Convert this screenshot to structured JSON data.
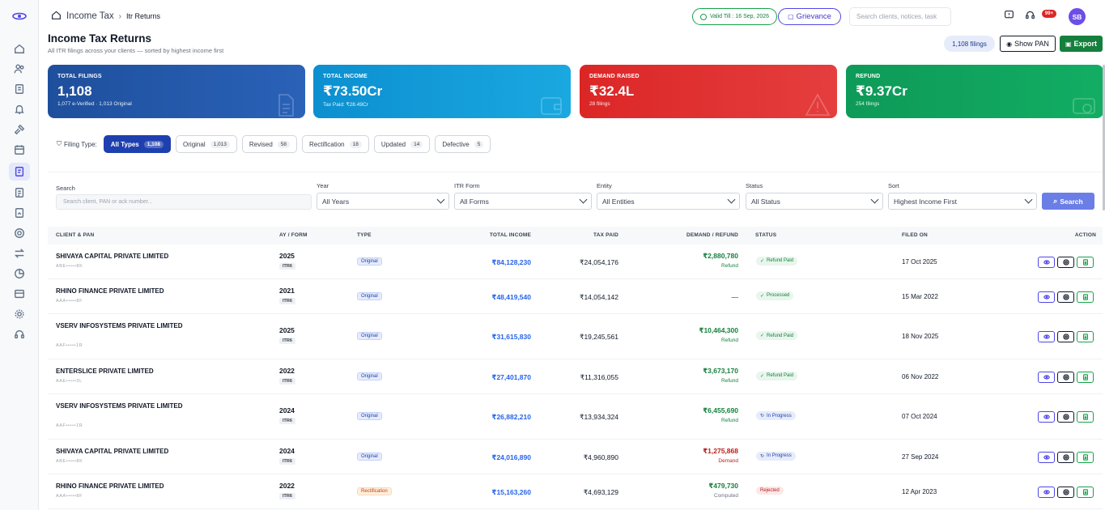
{
  "breadcrumb": {
    "section": "Income Tax",
    "current": "Itr Returns"
  },
  "topbar": {
    "valid_till": "Valid Till : 16 Sep, 2026",
    "grievance": "Grievance",
    "search_placeholder": "Search clients, notices, task",
    "notification_count": "99+",
    "avatar_initials": "SB"
  },
  "page": {
    "title": "Income Tax Returns",
    "subtitle": "All ITR filings across your clients — sorted by highest income first",
    "filings_count": "1,108 filings",
    "show_pan": "Show PAN",
    "export": "Export"
  },
  "cards": [
    {
      "title": "TOTAL FILINGS",
      "value": "1,108",
      "sub": "1,077 e-Verified · 1,013 Original",
      "color": "#1e4f9c"
    },
    {
      "title": "TOTAL INCOME",
      "value": "₹73.50Cr",
      "sub": "Tax Paid: ₹28.49Cr",
      "color": "#0f9bd6"
    },
    {
      "title": "DEMAND RAISED",
      "value": "₹32.4L",
      "sub": "28 filings",
      "color": "#dc2626"
    },
    {
      "title": "REFUND",
      "value": "₹9.37Cr",
      "sub": "254 filings",
      "color": "#0f9d58"
    }
  ],
  "filter_type": {
    "label": "Filing Type:",
    "chips": [
      {
        "label": "All Types",
        "count": "1,108"
      },
      {
        "label": "Original",
        "count": "1,013"
      },
      {
        "label": "Revised",
        "count": "58"
      },
      {
        "label": "Rectification",
        "count": "18"
      },
      {
        "label": "Updated",
        "count": "14"
      },
      {
        "label": "Defective",
        "count": "5"
      }
    ]
  },
  "search_panel": {
    "search_label": "Search",
    "search_placeholder": "Search client, PAN or ack number...",
    "year_label": "Year",
    "year_value": "All Years",
    "form_label": "ITR Form",
    "form_value": "All Forms",
    "entity_label": "Entity",
    "entity_value": "All Entities",
    "status_label": "Status",
    "status_value": "All Status",
    "sort_label": "Sort",
    "sort_value": "Highest Income First",
    "search_button": "Search"
  },
  "table": {
    "headers": {
      "client": "CLIENT & PAN",
      "ay": "AY / FORM",
      "type": "TYPE",
      "income": "TOTAL INCOME",
      "tax": "TAX PAID",
      "demand": "DEMAND / REFUND",
      "status": "STATUS",
      "filed": "FILED ON",
      "action": "ACTION"
    },
    "rows": [
      {
        "name": "SHIVAYA CAPITAL PRIVATE LIMITED",
        "pan": "ABE•••••8K",
        "year": "2025",
        "form": "ITR6",
        "type": "Original",
        "income": "₹84,128,230",
        "tax": "₹24,054,176",
        "demand": "₹2,880,780",
        "demand_label": "Refund",
        "status": "Refund Paid",
        "filed": "17 Oct 2025"
      },
      {
        "name": "RHINO FINANCE PRIVATE LIMITED",
        "pan": "AAA•••••8F",
        "year": "2021",
        "form": "ITR6",
        "type": "Original",
        "income": "₹48,419,540",
        "tax": "₹14,054,142",
        "demand": "—",
        "demand_label": "",
        "status": "Processed",
        "filed": "15 Mar 2022"
      },
      {
        "name": "VSERV INFOSYSTEMS PRIVATE LIMITED",
        "pan": "AAF•••••1R",
        "year": "2025",
        "form": "ITR6",
        "type": "Original",
        "income": "₹31,615,830",
        "tax": "₹19,245,561",
        "demand": "₹10,464,300",
        "demand_label": "Refund",
        "status": "Refund Paid",
        "filed": "18 Nov 2025"
      },
      {
        "name": "ENTERSLICE PRIVATE LIMITED",
        "pan": "AAE•••••3L",
        "year": "2022",
        "form": "ITR6",
        "type": "Original",
        "income": "₹27,401,870",
        "tax": "₹11,316,055",
        "demand": "₹3,673,170",
        "demand_label": "Refund",
        "status": "Refund Paid",
        "filed": "06 Nov 2022"
      },
      {
        "name": "VSERV INFOSYSTEMS PRIVATE LIMITED",
        "pan": "AAF•••••1R",
        "year": "2024",
        "form": "ITR6",
        "type": "Original",
        "income": "₹26,882,210",
        "tax": "₹13,934,324",
        "demand": "₹6,455,690",
        "demand_label": "Refund",
        "status": "In Progress",
        "filed": "07 Oct 2024"
      },
      {
        "name": "SHIVAYA CAPITAL PRIVATE LIMITED",
        "pan": "ABE•••••8K",
        "year": "2024",
        "form": "ITR6",
        "type": "Original",
        "income": "₹24,016,890",
        "tax": "₹4,960,890",
        "demand": "₹1,275,868",
        "demand_label": "Demand",
        "status": "In Progress",
        "filed": "27 Sep 2024"
      },
      {
        "name": "RHINO FINANCE PRIVATE LIMITED",
        "pan": "AAA•••••8F",
        "year": "2022",
        "form": "ITR6",
        "type": "Rectification",
        "income": "₹15,163,260",
        "tax": "₹4,693,129",
        "demand": "₹479,730",
        "demand_label": "Computed",
        "status": "Rejected",
        "filed": "12 Apr 2023"
      }
    ]
  }
}
